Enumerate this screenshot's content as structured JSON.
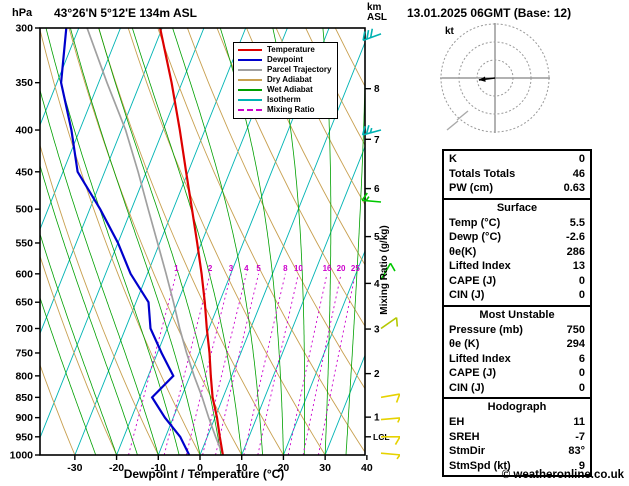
{
  "header": {
    "station_title": "43°26'N 5°12'E 134m ASL",
    "datetime_title": "13.01.2025 06GMT (Base: 12)",
    "pressure_unit": "hPa",
    "km_label_line1": "km",
    "km_label_line2": "ASL"
  },
  "axis": {
    "x_label": "Dewpoint / Temperature (°C)",
    "mixing_label": "Mixing Ratio (g/kg)",
    "lcl": "LCL"
  },
  "legend": {
    "items": [
      {
        "label": "Temperature",
        "key": "temperature"
      },
      {
        "label": "Dewpoint",
        "key": "dewpoint"
      },
      {
        "label": "Parcel Trajectory",
        "key": "parcel"
      },
      {
        "label": "Dry Adiabat",
        "key": "dry_adiabat"
      },
      {
        "label": "Wet Adiabat",
        "key": "wet_adiabat"
      },
      {
        "label": "Isotherm",
        "key": "isotherm"
      },
      {
        "label": "Mixing Ratio",
        "key": "mixing_ratio"
      }
    ]
  },
  "hodograph": {
    "unit": "kt",
    "storm_dir_deg": 83,
    "storm_speed_kt": 9
  },
  "panel": {
    "indices": {
      "rows": [
        {
          "label": "K",
          "value": "0"
        },
        {
          "label": "Totals Totals",
          "value": "46"
        },
        {
          "label": "PW (cm)",
          "value": "0.63"
        }
      ]
    },
    "surface": {
      "title": "Surface",
      "rows": [
        {
          "label": "Temp (°C)",
          "value": "5.5"
        },
        {
          "label": "Dewp (°C)",
          "value": "-2.6"
        },
        {
          "label": "θe(K)",
          "value": "286"
        },
        {
          "label": "Lifted Index",
          "value": "13"
        },
        {
          "label": "CAPE (J)",
          "value": "0"
        },
        {
          "label": "CIN (J)",
          "value": "0"
        }
      ]
    },
    "most_unstable": {
      "title": "Most Unstable",
      "rows": [
        {
          "label": "Pressure (mb)",
          "value": "750"
        },
        {
          "label": "θe (K)",
          "value": "294"
        },
        {
          "label": "Lifted Index",
          "value": "6"
        },
        {
          "label": "CAPE (J)",
          "value": "0"
        },
        {
          "label": "CIN (J)",
          "value": "0"
        }
      ]
    },
    "hodograph_section": {
      "title": "Hodograph",
      "rows": [
        {
          "label": "EH",
          "value": "11"
        },
        {
          "label": "SREH",
          "value": "-7"
        },
        {
          "label": "StmDir",
          "value": "83°"
        },
        {
          "label": "StmSpd (kt)",
          "value": "9"
        }
      ]
    }
  },
  "footer": {
    "copyright": "© weatheronline.co.uk"
  },
  "chart_data": {
    "type": "skewt_sounding",
    "title": "43°26'N 5°12'E 134m ASL",
    "valid": "13.01.2025 06GMT (Base: 12)",
    "pressure_hPa": [
      1000,
      950,
      900,
      850,
      800,
      750,
      700,
      650,
      600,
      550,
      500,
      450,
      400,
      350,
      300
    ],
    "temperature_C": [
      5.5,
      3,
      0.5,
      -2.5,
      -5,
      -7.5,
      -10.5,
      -13.5,
      -17,
      -21,
      -25.5,
      -30.5,
      -36,
      -42.5,
      -50.5
    ],
    "dewpoint_C": [
      -2.6,
      -6.5,
      -12,
      -17,
      -14,
      -19,
      -24,
      -27,
      -34,
      -40,
      -47.5,
      -56.5,
      -62,
      -69,
      -73
    ],
    "parcel_C": [
      5.5,
      2,
      -1.5,
      -5,
      -9,
      -13,
      -17,
      -21,
      -25.5,
      -30.5,
      -36,
      -42,
      -49,
      -58,
      -68
    ],
    "lcl_pressure_hPa": 950,
    "temp_axis_C": [
      -30,
      -20,
      -10,
      0,
      10,
      20,
      30,
      40
    ],
    "pressure_ticks_hPa": [
      300,
      350,
      400,
      450,
      500,
      550,
      600,
      650,
      700,
      750,
      800,
      850,
      900,
      950,
      1000
    ],
    "km_ticks": [
      1,
      2,
      3,
      4,
      5,
      6,
      7,
      8
    ],
    "mixing_ratio_lines_gkg": [
      1,
      2,
      3,
      4,
      5,
      8,
      10,
      16,
      20,
      25
    ],
    "isotherm_step_C": 10,
    "wind_barbs": [
      {
        "pressure_hPa": 305,
        "speed_kt": 30,
        "dir_deg": 250,
        "color": "#00b2b2"
      },
      {
        "pressure_hPa": 400,
        "speed_kt": 25,
        "dir_deg": 255,
        "color": "#00b2b2"
      },
      {
        "pressure_hPa": 490,
        "speed_kt": 15,
        "dir_deg": 275,
        "color": "#00c800"
      },
      {
        "pressure_hPa": 610,
        "speed_kt": 10,
        "dir_deg": 30,
        "color": "#00c800"
      },
      {
        "pressure_hPa": 700,
        "speed_kt": 10,
        "dir_deg": 55,
        "color": "#b4c800"
      },
      {
        "pressure_hPa": 850,
        "speed_kt": 10,
        "dir_deg": 80,
        "color": "#e6d200"
      },
      {
        "pressure_hPa": 905,
        "speed_kt": 5,
        "dir_deg": 85,
        "color": "#e6d200"
      },
      {
        "pressure_hPa": 950,
        "speed_kt": 10,
        "dir_deg": 90,
        "color": "#e6d200"
      },
      {
        "pressure_hPa": 995,
        "speed_kt": 5,
        "dir_deg": 95,
        "color": "#e6d200"
      }
    ],
    "colors": {
      "temperature": "#dd0000",
      "dewpoint": "#0000cc",
      "parcel": "#a0a0a0",
      "dry_adiabat": "#c8a050",
      "wet_adiabat": "#00a000",
      "isotherm": "#00b4b4",
      "mixing_ratio": "#cc00cc"
    }
  }
}
